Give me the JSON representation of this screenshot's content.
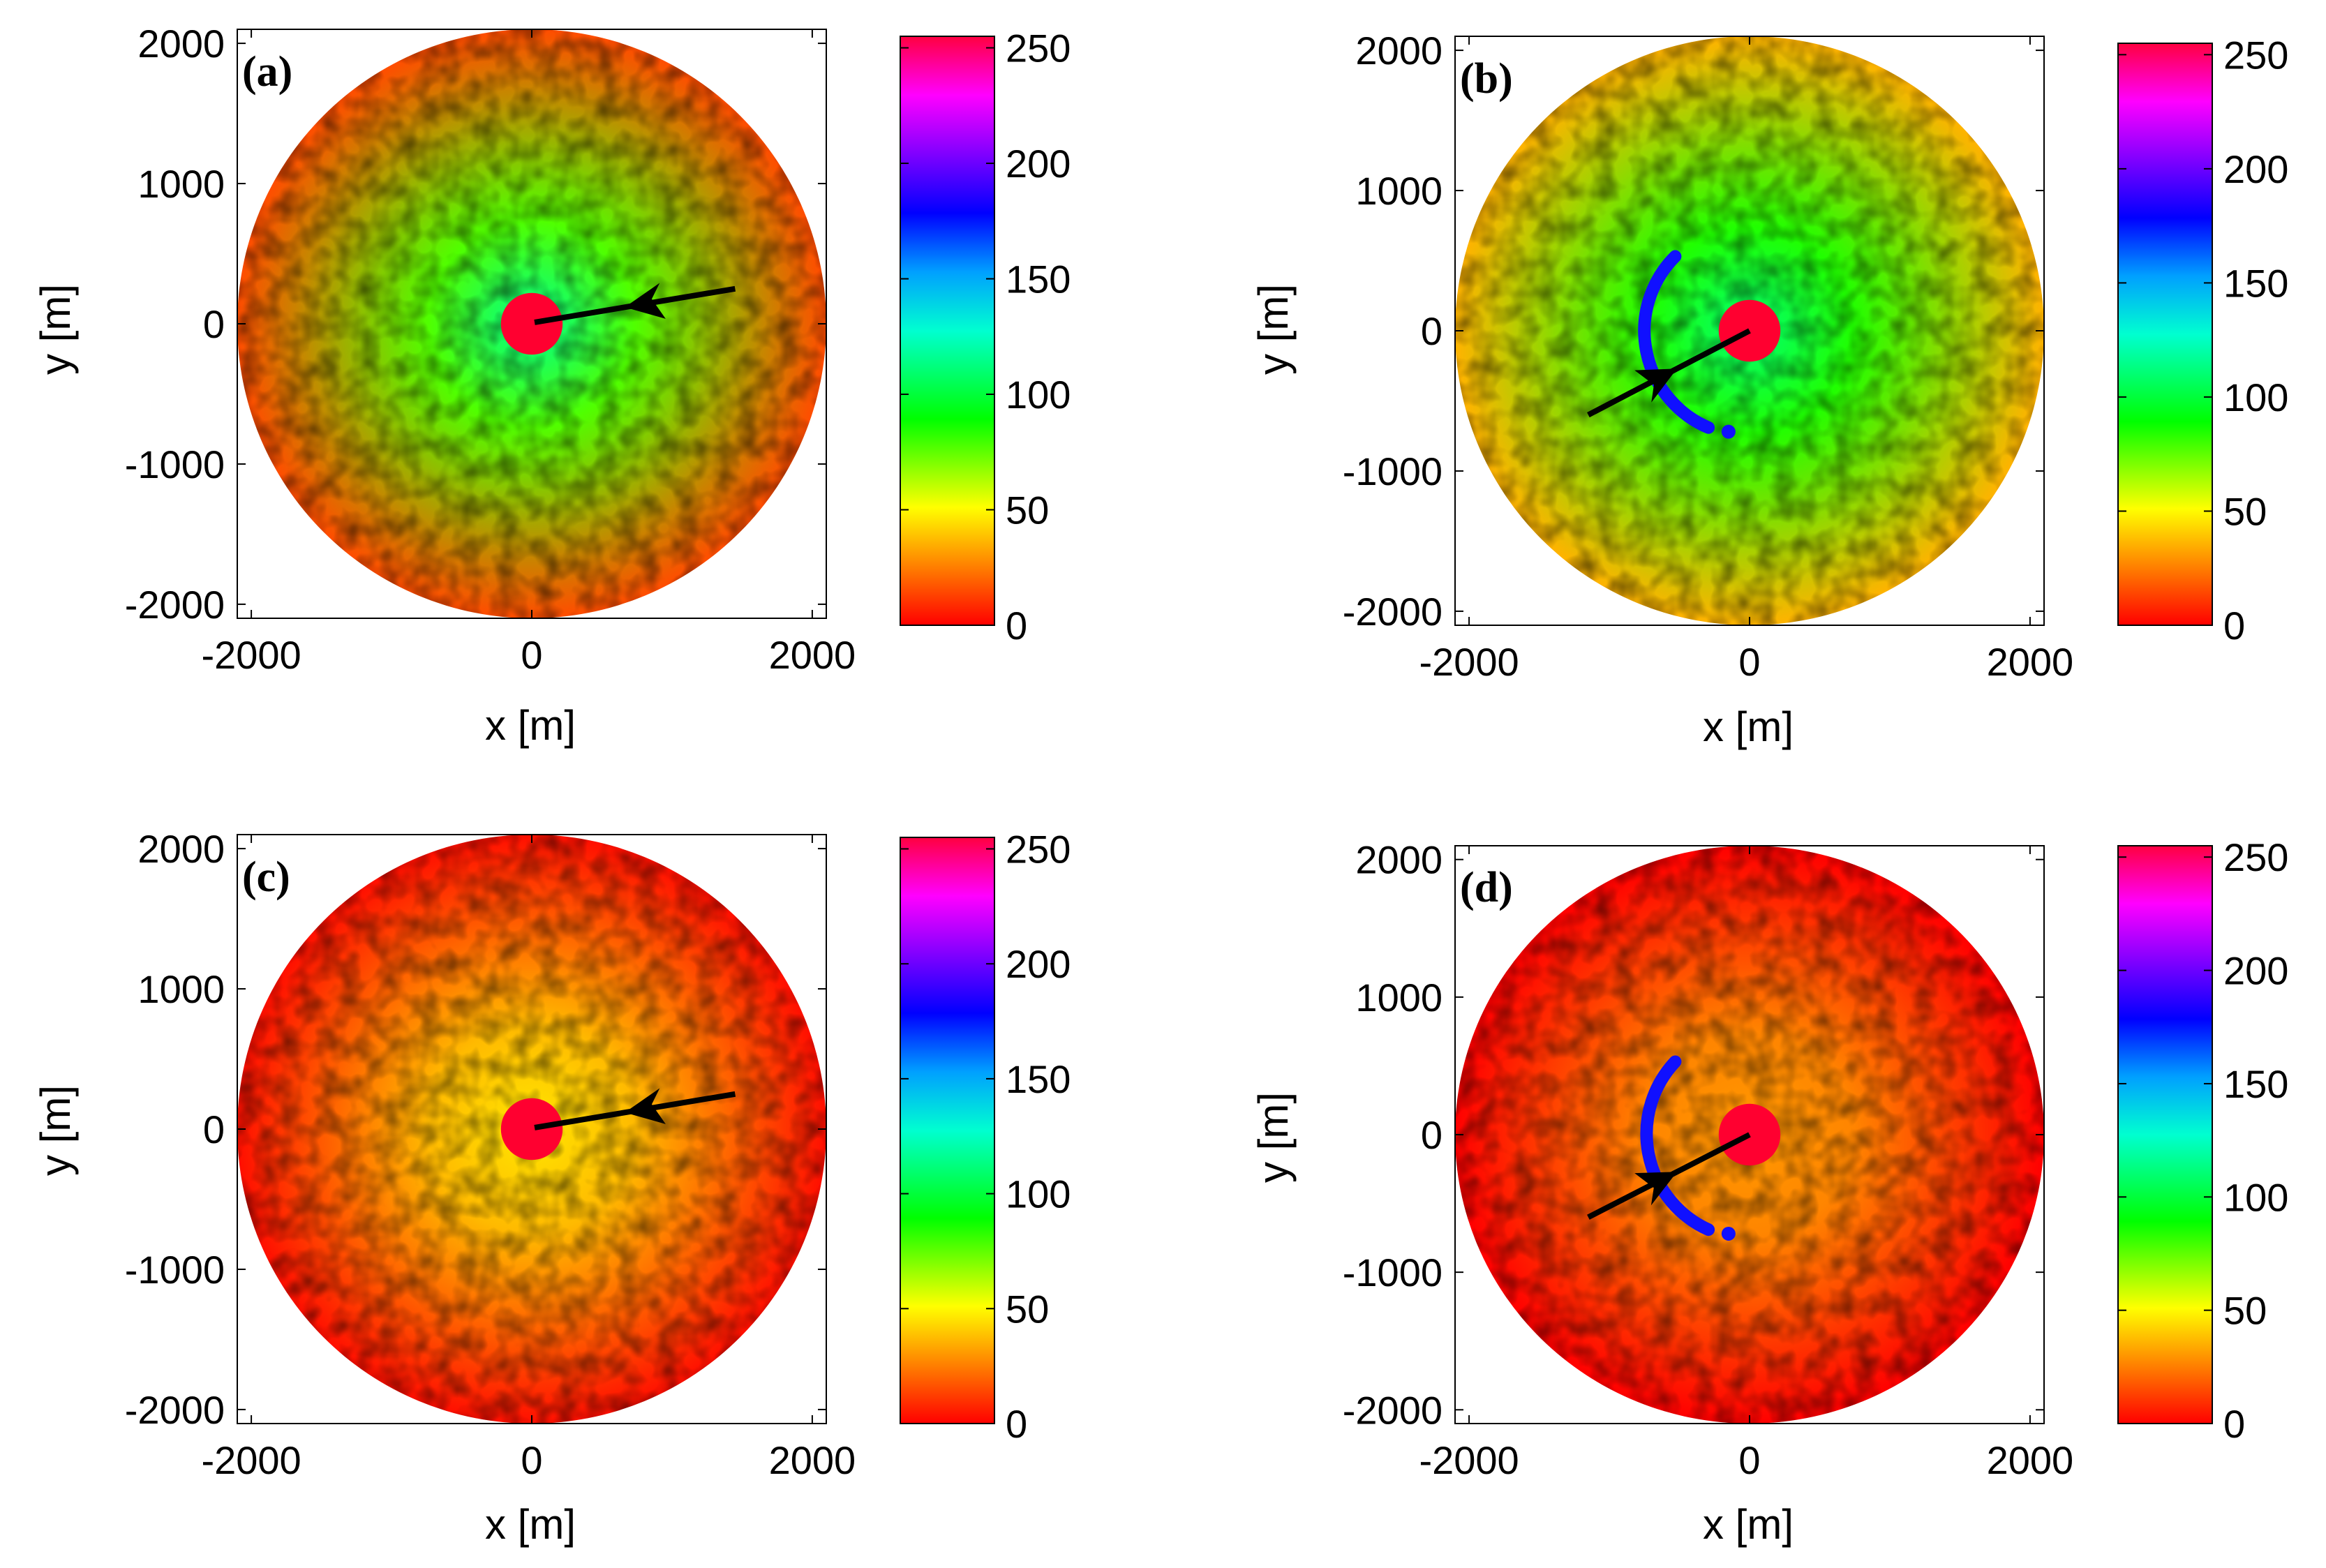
{
  "figure": {
    "panels_order": [
      "a",
      "b",
      "c",
      "d"
    ]
  },
  "chart_data": [
    {
      "type": "heatmap",
      "panel_label": "(a)",
      "xlabel": "x [m]",
      "ylabel": "y [m]",
      "xlim": [
        -2100,
        2100
      ],
      "ylim": [
        -2100,
        2100
      ],
      "x_ticks": [
        "-2000",
        "0",
        "2000"
      ],
      "y_ticks": [
        "2000",
        "1000",
        "0",
        "-1000",
        "-2000"
      ],
      "x_tick_values": [
        -2000,
        0,
        2000
      ],
      "y_tick_values": [
        2000,
        1000,
        0,
        -1000,
        -2000
      ],
      "colorbar": {
        "range": [
          0,
          255
        ],
        "ticks": [
          "250",
          "200",
          "150",
          "100",
          "50",
          "0"
        ],
        "tick_values": [
          250,
          200,
          150,
          100,
          50,
          0
        ]
      },
      "disk_radius_m": 2100,
      "center_mask_radius_m": 220,
      "dominant_level": 40,
      "center_level": 115,
      "arrow": {
        "from": [
          1450,
          250
        ],
        "to": [
          20,
          10
        ]
      },
      "arc": null
    },
    {
      "type": "heatmap",
      "panel_label": "(b)",
      "xlabel": "x [m]",
      "ylabel": "y [m]",
      "xlim": [
        -2100,
        2100
      ],
      "ylim": [
        -2100,
        2100
      ],
      "x_ticks": [
        "-2000",
        "0",
        "2000"
      ],
      "y_ticks": [
        "2000",
        "1000",
        "0",
        "-1000",
        "-2000"
      ],
      "x_tick_values": [
        -2000,
        0,
        2000
      ],
      "y_tick_values": [
        2000,
        1000,
        0,
        -1000,
        -2000
      ],
      "colorbar": {
        "range": [
          0,
          255
        ],
        "ticks": [
          "250",
          "200",
          "150",
          "100",
          "50",
          "0"
        ],
        "tick_values": [
          250,
          200,
          150,
          100,
          50,
          0
        ]
      },
      "disk_radius_m": 2100,
      "center_mask_radius_m": 220,
      "dominant_level": 60,
      "center_level": 110,
      "arrow": {
        "from": [
          -1150,
          -600
        ],
        "to": [
          0,
          0
        ]
      },
      "arc": {
        "center": [
          0,
          0
        ],
        "radius": 750,
        "start_deg": 135,
        "end_deg": 247
      }
    },
    {
      "type": "heatmap",
      "panel_label": "(c)",
      "xlabel": "x [m]",
      "ylabel": "y [m]",
      "xlim": [
        -2100,
        2100
      ],
      "ylim": [
        -2100,
        2100
      ],
      "x_ticks": [
        "-2000",
        "0",
        "2000"
      ],
      "y_ticks": [
        "2000",
        "1000",
        "0",
        "-1000",
        "-2000"
      ],
      "x_tick_values": [
        -2000,
        0,
        2000
      ],
      "y_tick_values": [
        2000,
        1000,
        0,
        -1000,
        -2000
      ],
      "colorbar": {
        "range": [
          0,
          255
        ],
        "ticks": [
          "250",
          "200",
          "150",
          "100",
          "50",
          "0"
        ],
        "tick_values": [
          250,
          200,
          150,
          100,
          50,
          0
        ]
      },
      "disk_radius_m": 2100,
      "center_mask_radius_m": 220,
      "dominant_level": 28,
      "center_level": 45,
      "arrow": {
        "from": [
          1450,
          250
        ],
        "to": [
          20,
          10
        ]
      },
      "arc": null
    },
    {
      "type": "heatmap",
      "panel_label": "(d)",
      "xlabel": "x [m]",
      "ylabel": "y [m]",
      "xlim": [
        -2100,
        2100
      ],
      "ylim": [
        -2100,
        2100
      ],
      "x_ticks": [
        "-2000",
        "0",
        "2000"
      ],
      "y_ticks": [
        "2000",
        "1000",
        "0",
        "-1000",
        "-2000"
      ],
      "x_tick_values": [
        -2000,
        0,
        2000
      ],
      "y_tick_values": [
        2000,
        1000,
        0,
        -1000,
        -2000
      ],
      "colorbar": {
        "range": [
          0,
          255
        ],
        "ticks": [
          "250",
          "200",
          "150",
          "100",
          "50",
          "0"
        ],
        "tick_values": [
          250,
          200,
          150,
          100,
          50,
          0
        ]
      },
      "disk_radius_m": 2100,
      "center_mask_radius_m": 220,
      "dominant_level": 22,
      "center_level": 30,
      "arrow": {
        "from": [
          -1150,
          -600
        ],
        "to": [
          0,
          0
        ]
      },
      "arc": {
        "center": [
          0,
          0
        ],
        "radius": 750,
        "start_deg": 135,
        "end_deg": 247
      }
    }
  ]
}
